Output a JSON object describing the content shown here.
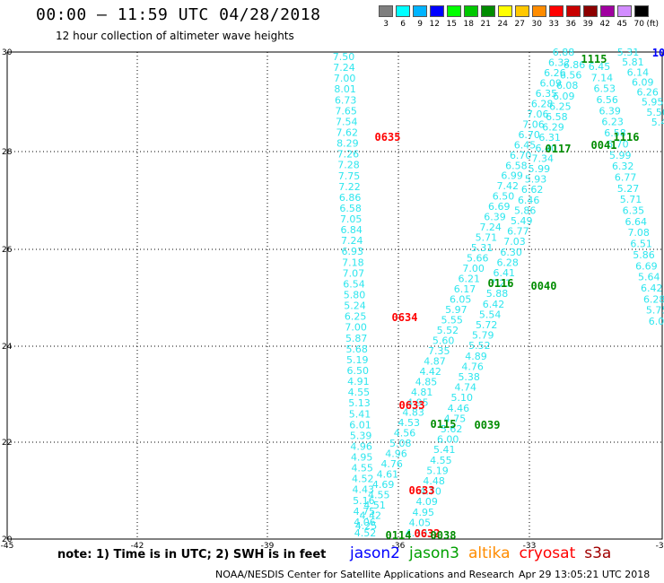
{
  "title": "00:00 — 11:59 UTC 04/28/2018",
  "subtitle": "12 hour collection of altimeter wave heights",
  "legend": {
    "unit": "(ft)",
    "bins": [
      {
        "label": "3",
        "color": "#7f7f7f"
      },
      {
        "label": "6",
        "color": "#00ffff"
      },
      {
        "label": "9",
        "color": "#00b4ff"
      },
      {
        "label": "12",
        "color": "#0000ff"
      },
      {
        "label": "15",
        "color": "#00ff00"
      },
      {
        "label": "18",
        "color": "#00c800"
      },
      {
        "label": "21",
        "color": "#008c00"
      },
      {
        "label": "24",
        "color": "#ffff00"
      },
      {
        "label": "27",
        "color": "#ffc800"
      },
      {
        "label": "30",
        "color": "#ff8c00"
      },
      {
        "label": "33",
        "color": "#ff0000"
      },
      {
        "label": "36",
        "color": "#c80000"
      },
      {
        "label": "39",
        "color": "#8c0000"
      },
      {
        "label": "42",
        "color": "#a000a0"
      },
      {
        "label": "45",
        "color": "#d28cff"
      },
      {
        "label": "70",
        "color": "#000000"
      }
    ]
  },
  "axes": {
    "x_ticks": [
      "-45",
      "-42",
      "-39",
      "-36",
      "-33",
      "-30"
    ],
    "y_ticks": [
      "20",
      "22",
      "24",
      "26",
      "28",
      "30"
    ],
    "y_ticks_shown": [
      "20",
      "22",
      "24",
      "26",
      "28",
      "28",
      "30"
    ]
  },
  "tracks": {
    "track_a": [
      "7.50",
      "7.24",
      "7.00",
      "8.01",
      "6.73",
      "7.65",
      "7.54",
      "7.62",
      "8.29",
      "7.26",
      "7.28",
      "7.75",
      "7.22",
      "6.86",
      "6.58",
      "7.05",
      "6.84",
      "7.24",
      "6.93",
      "7.18",
      "7.07",
      "6.54",
      "5.80",
      "5.24",
      "6.25",
      "7.00",
      "5.87",
      "5.68",
      "5.19",
      "6.50",
      "4.91",
      "4.55",
      "5.13",
      "5.41",
      "6.01",
      "5.39",
      "4.96",
      "4.95",
      "4.55",
      "4.52",
      "4.43",
      "5.16",
      "4.75",
      "4.06",
      "4.52"
    ],
    "track_b": [
      "6.88",
      "6.32",
      "6.26",
      "6.09",
      "6.35",
      "6.28",
      "7.06",
      "7.06",
      "6.70",
      "6.45",
      "6.70",
      "6.58",
      "6.99",
      "7.42",
      "6.50",
      "6.69",
      "6.39",
      "7.24",
      "5.71",
      "5.31",
      "5.66",
      "7.00",
      "6.21",
      "6.17",
      "6.05",
      "5.97",
      "5.55",
      "5.52",
      "5.60",
      "7.35",
      "4.87",
      "4.42",
      "4.85",
      "4.81",
      "4.95",
      "4.83",
      "4.53",
      "4.56",
      "5.08",
      "4.96",
      "4.76",
      "4.61",
      "4.69",
      "4.55",
      "4.51",
      "4.42",
      "4.25"
    ],
    "track_c": [
      "6.86",
      "6.56",
      "6.08",
      "6.09",
      "6.25",
      "6.58",
      "6.29",
      "6.31",
      "6.40",
      "7.34",
      "5.99",
      "5.93",
      "6.62",
      "6.46",
      "5.86",
      "5.49",
      "6.77",
      "7.03",
      "6.30",
      "6.28",
      "6.41",
      "7.21",
      "5.88",
      "6.42",
      "5.54",
      "5.72",
      "5.79",
      "5.52",
      "4.89",
      "4.76",
      "5.38",
      "4.74",
      "5.10",
      "4.46",
      "4.75",
      "5.62",
      "6.00",
      "5.41",
      "4.55",
      "5.19",
      "4.48",
      "4.70",
      "4.09",
      "4.95",
      "4.05",
      "4.30"
    ],
    "track_d": [
      "6.45",
      "7.14",
      "6.53",
      "6.56",
      "6.39",
      "6.23",
      "6.58",
      "6.70",
      "5.99",
      "6.32",
      "6.77",
      "5.27",
      "5.71",
      "6.35",
      "6.64",
      "7.08",
      "6.51",
      "5.86",
      "6.69",
      "5.64",
      "6.42",
      "6.28",
      "5.75",
      "6.05"
    ],
    "track_e": [
      "5.31",
      "5.81",
      "6.14",
      "6.09",
      "6.26",
      "5.95",
      "5.50",
      "5.41"
    ]
  },
  "passes": [
    {
      "label": "0635",
      "color": "#ff0000"
    },
    {
      "label": "0634",
      "color": "#ff0000"
    },
    {
      "label": "0633",
      "color": "#ff0000"
    },
    {
      "label": "0633",
      "color": "#ff0000"
    },
    {
      "label": "0632",
      "color": "#ff0000"
    },
    {
      "label": "1115",
      "color": "#008c00"
    },
    {
      "label": "0117",
      "color": "#008c00"
    },
    {
      "label": "0041",
      "color": "#008c00"
    },
    {
      "label": "1116",
      "color": "#008c00"
    },
    {
      "label": "0116",
      "color": "#008c00"
    },
    {
      "label": "0040",
      "color": "#008c00"
    },
    {
      "label": "0115",
      "color": "#008c00"
    },
    {
      "label": "0039",
      "color": "#008c00"
    },
    {
      "label": "0114",
      "color": "#008c00"
    },
    {
      "label": "0038",
      "color": "#008c00"
    },
    {
      "label": "10",
      "color": "#0000ff"
    }
  ],
  "footer": {
    "note": "note:  1) Time is in UTC;  2) SWH is in feet",
    "satellites": [
      {
        "name": "jason2",
        "color": "#0000ff"
      },
      {
        "name": "jason3",
        "color": "#00a000"
      },
      {
        "name": "altika",
        "color": "#ff8c00"
      },
      {
        "name": "cryosat",
        "color": "#ff0000"
      },
      {
        "name": "s3a",
        "color": "#a00000"
      }
    ],
    "credit": "NOAA/NESDIS Center for Satellite Applications and Research",
    "timestamp": "Apr 29 13:05:21 UTC 2018"
  }
}
